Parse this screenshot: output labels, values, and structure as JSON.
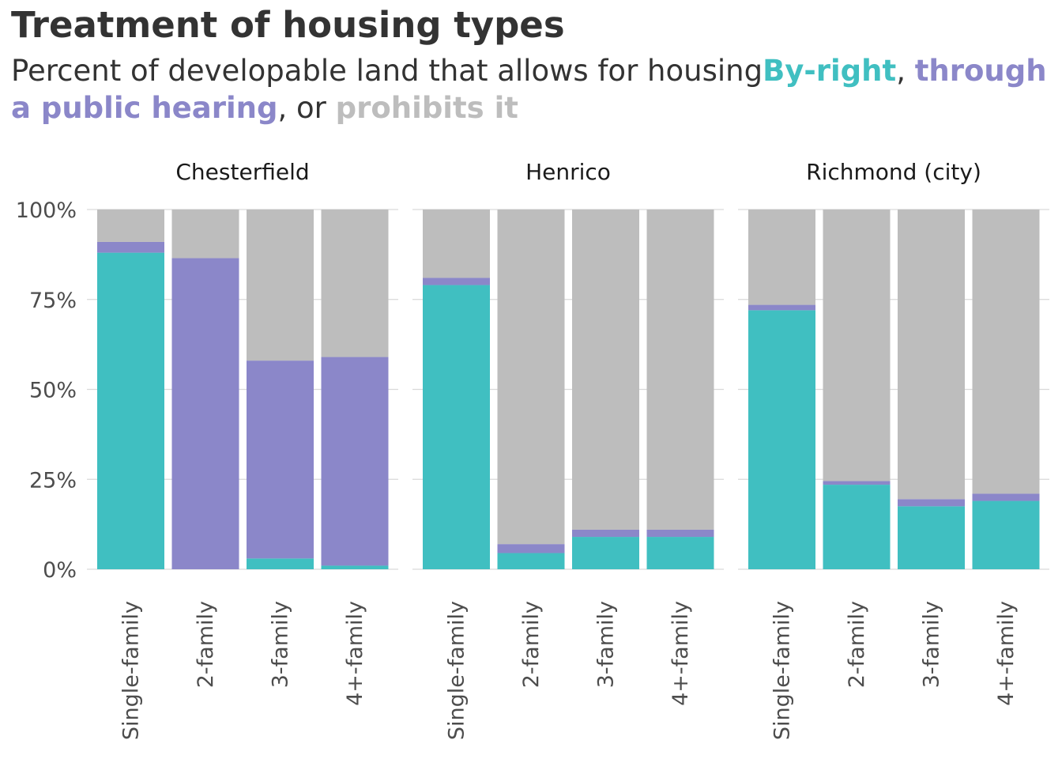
{
  "title": "Treatment of housing types",
  "subtitle": {
    "prefix": "Percent of developable land that allows for housing",
    "by_right": "By-right",
    "sep1": ", ",
    "public_hearing": "through a public hearing",
    "sep2": ", or ",
    "prohibits": "prohibits it"
  },
  "colors": {
    "by_right": "#40bfc1",
    "public_hearing": "#8b87c9",
    "prohibits": "#bdbdbd",
    "gridline": "#d9d9d9",
    "title": "#333333"
  },
  "chart_data": {
    "type": "bar",
    "stacked": true,
    "facets": [
      "Chesterfield",
      "Henrico",
      "Richmond (city)"
    ],
    "categories": [
      "Single-family",
      "2-family",
      "3-family",
      "4+-family"
    ],
    "ylim": [
      0,
      100
    ],
    "yticks": [
      0,
      25,
      50,
      75,
      100
    ],
    "ytick_labels": [
      "0%",
      "25%",
      "50%",
      "75%",
      "100%"
    ],
    "grid": true,
    "legend": "in subtitle",
    "series_order": [
      "By-right",
      "Through a public hearing",
      "Prohibits"
    ],
    "panels": [
      {
        "facet": "Chesterfield",
        "series": [
          {
            "name": "By-right",
            "values": [
              88,
              0,
              3,
              1
            ]
          },
          {
            "name": "Through a public hearing",
            "values": [
              3,
              86.5,
              55,
              58
            ]
          },
          {
            "name": "Prohibits",
            "values": [
              9,
              13.5,
              42,
              41
            ]
          }
        ]
      },
      {
        "facet": "Henrico",
        "series": [
          {
            "name": "By-right",
            "values": [
              79,
              4.5,
              9,
              9
            ]
          },
          {
            "name": "Through a public hearing",
            "values": [
              2,
              2.5,
              2,
              2
            ]
          },
          {
            "name": "Prohibits",
            "values": [
              19,
              93,
              89,
              89
            ]
          }
        ]
      },
      {
        "facet": "Richmond (city)",
        "series": [
          {
            "name": "By-right",
            "values": [
              72,
              23.5,
              17.5,
              19
            ]
          },
          {
            "name": "Through a public hearing",
            "values": [
              1.5,
              1,
              2,
              2
            ]
          },
          {
            "name": "Prohibits",
            "values": [
              26.5,
              75.5,
              80.5,
              79
            ]
          }
        ]
      }
    ]
  }
}
